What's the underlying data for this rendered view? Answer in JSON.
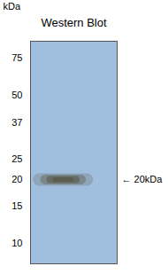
{
  "chart_data": {
    "type": "gel",
    "title": "Western Blot",
    "ylabel": "kDa",
    "log": "y",
    "ylim": [
      8,
      90
    ],
    "yticks": [
      75,
      50,
      37,
      25,
      20,
      15,
      10
    ],
    "values": [
      20
    ],
    "annotations": [
      "← 20kDa"
    ],
    "colors": [
      "#a0bedd",
      "#5a5a4a"
    ]
  }
}
